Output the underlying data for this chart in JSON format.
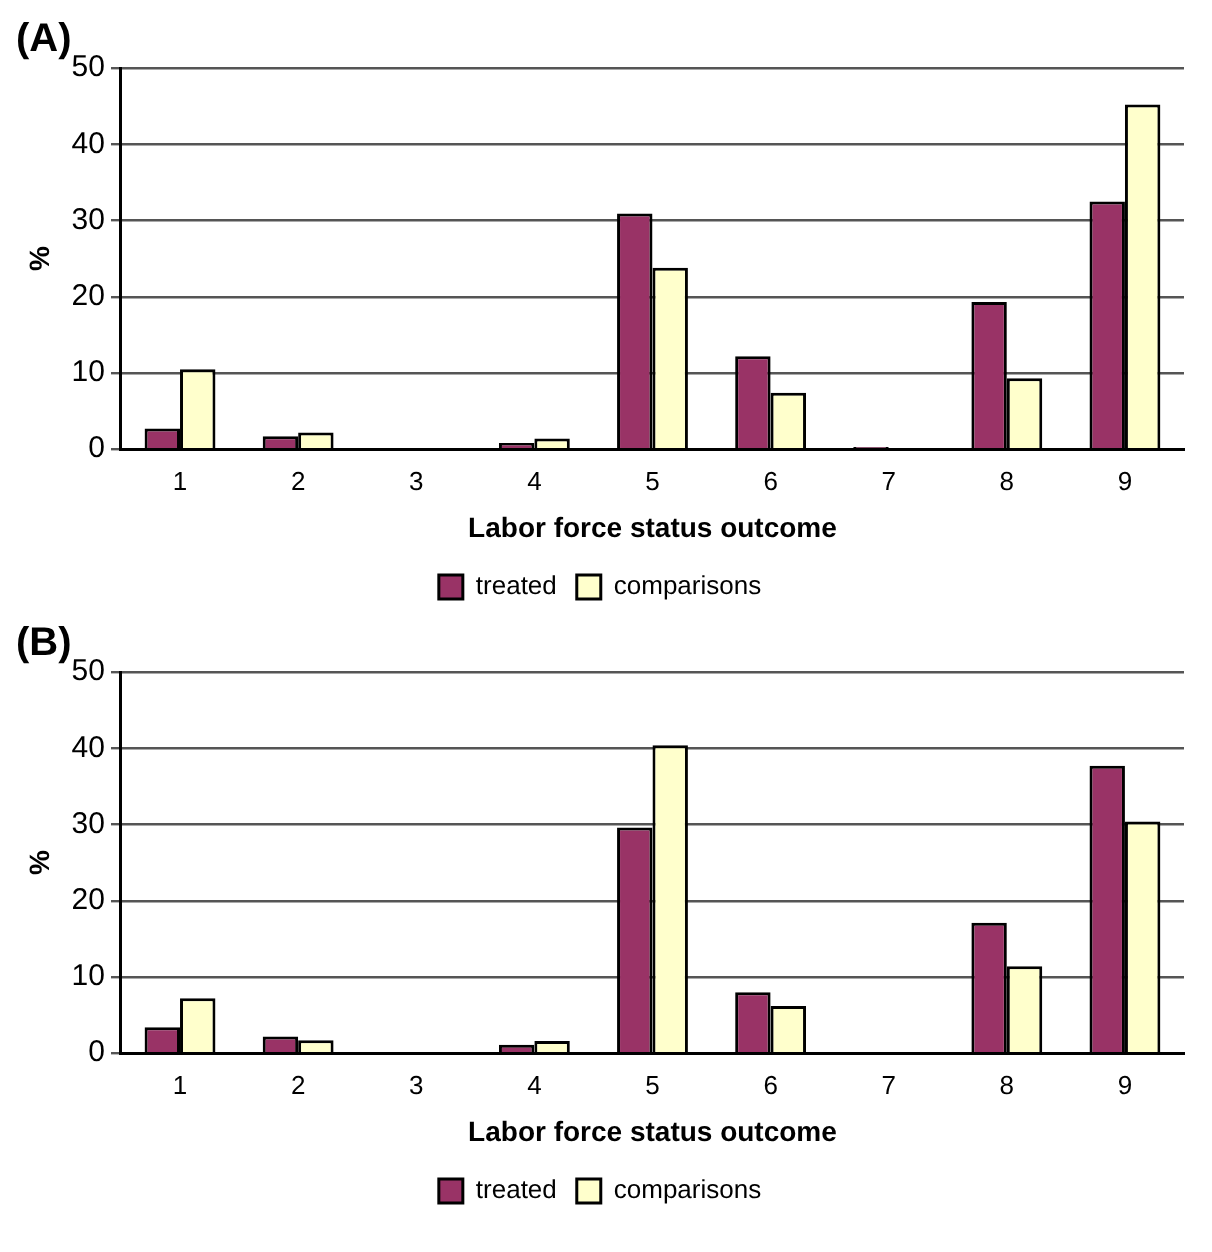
{
  "chart_data": [
    {
      "type": "bar",
      "title": "(A)",
      "xlabel": "Labor force status outcome",
      "ylabel": "%",
      "categories": [
        "1",
        "2",
        "3",
        "4",
        "5",
        "6",
        "7",
        "8",
        "9"
      ],
      "series": [
        {
          "name": "treated",
          "color": "#993366",
          "values": [
            2.7,
            1.7,
            null,
            0.8,
            30.9,
            12.2,
            0.3,
            19.3,
            32.5
          ]
        },
        {
          "name": "comparisons",
          "color": "#ffffcc",
          "values": [
            10.5,
            2.2,
            null,
            1.4,
            23.8,
            7.4,
            null,
            9.3,
            45.2
          ]
        }
      ],
      "ylim": [
        0,
        50
      ],
      "yticks": [
        0,
        10,
        20,
        30,
        40,
        50
      ],
      "grid": "y",
      "legend": "bottom"
    },
    {
      "type": "bar",
      "title": "(B)",
      "xlabel": "Labor force status outcome",
      "ylabel": "%",
      "categories": [
        "1",
        "2",
        "3",
        "4",
        "5",
        "6",
        "7",
        "8",
        "9"
      ],
      "series": [
        {
          "name": "treated",
          "color": "#993366",
          "values": [
            3.4,
            2.2,
            0,
            1.1,
            29.6,
            8.0,
            0,
            17.1,
            37.7
          ]
        },
        {
          "name": "comparisons",
          "color": "#ffffcc",
          "values": [
            7.2,
            1.7,
            0,
            1.6,
            40.4,
            6.2,
            0,
            11.4,
            30.4
          ]
        }
      ],
      "ylim": [
        0,
        50
      ],
      "yticks": [
        0,
        10,
        20,
        30,
        40,
        50
      ],
      "grid": "y",
      "legend": "bottom"
    }
  ]
}
